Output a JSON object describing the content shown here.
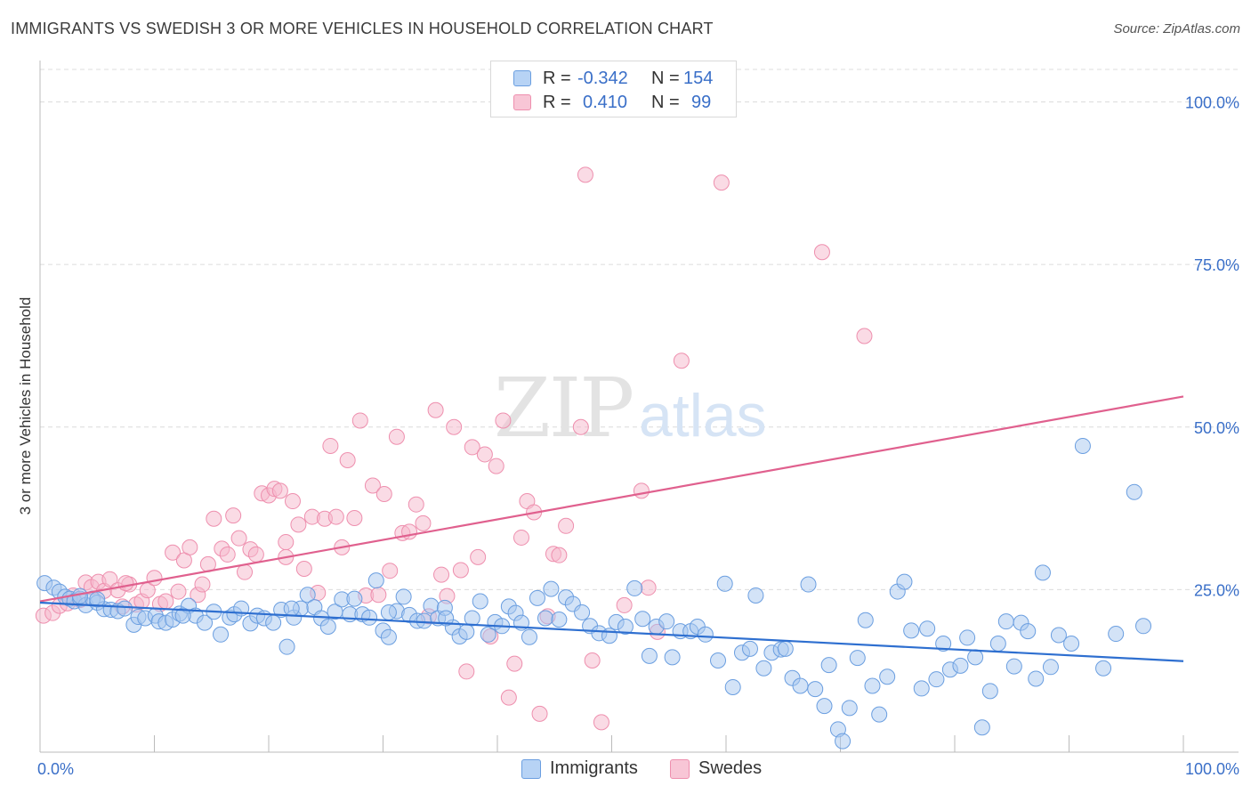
{
  "title": "IMMIGRANTS VS SWEDISH 3 OR MORE VEHICLES IN HOUSEHOLD CORRELATION CHART",
  "source": "Source: ZipAtlas.com",
  "watermark": {
    "zip": "ZIP",
    "atlas": "atlas"
  },
  "legend": {
    "rows": [
      {
        "r_label": "R =",
        "r_value": "-0.342",
        "n_label": "N =",
        "n_value": "154"
      },
      {
        "r_label": "R =",
        "r_value": "0.410",
        "n_label": "N =",
        "n_value": "99"
      }
    ]
  },
  "bottom_legend": {
    "immigrants": "Immigrants",
    "swedes": "Swedes"
  },
  "colors": {
    "immigrants_fill": "#a8c8f0",
    "immigrants_stroke": "#6a9ee0",
    "immigrants_line": "#2e6fd0",
    "swedes_fill": "#f6b8cc",
    "swedes_stroke": "#ee8fae",
    "swedes_line": "#e0608e",
    "tick_label": "#3a6fc8",
    "grid": "#dcdcdc"
  },
  "chart_data": {
    "type": "scatter",
    "title": "IMMIGRANTS VS SWEDISH 3 OR MORE VEHICLES IN HOUSEHOLD CORRELATION CHART",
    "xlabel": "",
    "ylabel": "3 or more Vehicles in Household",
    "xlim": [
      0,
      100
    ],
    "ylim": [
      0,
      105
    ],
    "x_tick_labels": [
      "0.0%",
      "100.0%"
    ],
    "y_ticks": [
      25,
      50,
      75,
      100
    ],
    "y_tick_labels": [
      "25.0%",
      "50.0%",
      "75.0%",
      "100.0%"
    ],
    "grid": "horizontal dashed",
    "legend_position": "top-center",
    "series": [
      {
        "name": "Immigrants",
        "r": -0.342,
        "n": 154,
        "trend": {
          "x": [
            0,
            100
          ],
          "y": [
            23.0,
            14.0
          ]
        },
        "points": [
          [
            0.4,
            26.0
          ],
          [
            1.2,
            25.3
          ],
          [
            1.7,
            24.7
          ],
          [
            2.2,
            23.9
          ],
          [
            2.6,
            23.6
          ],
          [
            3.0,
            23.2
          ],
          [
            3.5,
            23.6
          ],
          [
            4.0,
            22.6
          ],
          [
            4.6,
            23.6
          ],
          [
            5.0,
            23.0
          ],
          [
            5.6,
            22.0
          ],
          [
            6.2,
            21.9
          ],
          [
            6.8,
            21.7
          ],
          [
            7.4,
            22.1
          ],
          [
            8.2,
            19.6
          ],
          [
            8.6,
            20.8
          ],
          [
            9.2,
            20.6
          ],
          [
            10.1,
            21.0
          ],
          [
            10.4,
            20.1
          ],
          [
            11.0,
            19.9
          ],
          [
            11.6,
            20.4
          ],
          [
            12.2,
            21.3
          ],
          [
            13.0,
            22.5
          ],
          [
            13.6,
            21.0
          ],
          [
            14.4,
            19.9
          ],
          [
            15.2,
            21.6
          ],
          [
            15.8,
            18.1
          ],
          [
            16.6,
            20.7
          ],
          [
            17.0,
            21.2
          ],
          [
            17.6,
            22.1
          ],
          [
            18.4,
            19.8
          ],
          [
            19.0,
            21.0
          ],
          [
            19.6,
            20.6
          ],
          [
            20.4,
            19.9
          ],
          [
            21.1,
            21.9
          ],
          [
            21.6,
            16.2
          ],
          [
            22.2,
            20.7
          ],
          [
            22.8,
            22.1
          ],
          [
            23.4,
            24.2
          ],
          [
            24.0,
            22.3
          ],
          [
            24.6,
            20.6
          ],
          [
            25.2,
            19.3
          ],
          [
            25.8,
            21.6
          ],
          [
            26.4,
            23.5
          ],
          [
            27.1,
            21.2
          ],
          [
            27.5,
            23.6
          ],
          [
            28.2,
            21.2
          ],
          [
            28.8,
            20.7
          ],
          [
            29.4,
            26.4
          ],
          [
            30.0,
            18.7
          ],
          [
            30.5,
            17.7
          ],
          [
            31.2,
            21.7
          ],
          [
            31.8,
            23.9
          ],
          [
            32.3,
            21.1
          ],
          [
            33.0,
            20.2
          ],
          [
            33.6,
            20.2
          ],
          [
            34.2,
            22.5
          ],
          [
            34.8,
            20.6
          ],
          [
            35.4,
            22.2
          ],
          [
            36.1,
            19.2
          ],
          [
            36.7,
            17.8
          ],
          [
            37.3,
            18.5
          ],
          [
            37.8,
            20.6
          ],
          [
            38.5,
            23.2
          ],
          [
            39.2,
            18.1
          ],
          [
            39.8,
            20.0
          ],
          [
            40.4,
            19.4
          ],
          [
            41.0,
            22.4
          ],
          [
            41.6,
            21.4
          ],
          [
            42.1,
            19.9
          ],
          [
            42.8,
            17.7
          ],
          [
            43.5,
            23.7
          ],
          [
            44.2,
            20.6
          ],
          [
            44.7,
            25.1
          ],
          [
            45.4,
            20.4
          ],
          [
            46.0,
            23.8
          ],
          [
            46.6,
            22.8
          ],
          [
            47.4,
            21.5
          ],
          [
            48.1,
            19.4
          ],
          [
            48.9,
            18.3
          ],
          [
            49.8,
            17.9
          ],
          [
            50.4,
            20.0
          ],
          [
            51.2,
            19.3
          ],
          [
            52.0,
            25.2
          ],
          [
            52.7,
            20.5
          ],
          [
            53.3,
            14.8
          ],
          [
            53.9,
            19.3
          ],
          [
            54.8,
            20.1
          ],
          [
            55.3,
            14.6
          ],
          [
            56.0,
            18.6
          ],
          [
            56.9,
            18.6
          ],
          [
            57.5,
            19.3
          ],
          [
            58.2,
            18.1
          ],
          [
            59.3,
            14.1
          ],
          [
            59.9,
            25.9
          ],
          [
            60.6,
            10.0
          ],
          [
            61.4,
            15.3
          ],
          [
            62.1,
            15.9
          ],
          [
            62.6,
            24.1
          ],
          [
            63.3,
            12.9
          ],
          [
            64.0,
            15.3
          ],
          [
            64.8,
            15.8
          ],
          [
            65.2,
            15.9
          ],
          [
            65.8,
            11.4
          ],
          [
            66.5,
            10.2
          ],
          [
            67.2,
            25.8
          ],
          [
            67.8,
            9.7
          ],
          [
            68.6,
            7.1
          ],
          [
            69.0,
            13.4
          ],
          [
            69.8,
            3.5
          ],
          [
            70.2,
            1.7
          ],
          [
            70.8,
            6.8
          ],
          [
            71.5,
            14.5
          ],
          [
            72.2,
            20.3
          ],
          [
            72.8,
            10.2
          ],
          [
            73.4,
            5.8
          ],
          [
            74.1,
            11.6
          ],
          [
            75.0,
            24.7
          ],
          [
            75.6,
            26.2
          ],
          [
            76.2,
            18.7
          ],
          [
            77.1,
            9.8
          ],
          [
            77.6,
            19.0
          ],
          [
            78.4,
            11.2
          ],
          [
            79.0,
            16.7
          ],
          [
            79.6,
            12.7
          ],
          [
            80.5,
            13.3
          ],
          [
            81.1,
            17.6
          ],
          [
            81.8,
            14.6
          ],
          [
            82.4,
            3.8
          ],
          [
            83.1,
            9.4
          ],
          [
            83.8,
            16.7
          ],
          [
            84.5,
            20.1
          ],
          [
            85.2,
            13.2
          ],
          [
            85.8,
            19.9
          ],
          [
            86.4,
            18.6
          ],
          [
            87.1,
            11.3
          ],
          [
            87.7,
            27.6
          ],
          [
            88.4,
            13.1
          ],
          [
            89.1,
            18.0
          ],
          [
            90.2,
            16.7
          ],
          [
            91.2,
            47.1
          ],
          [
            93.0,
            12.9
          ],
          [
            94.1,
            18.2
          ],
          [
            95.7,
            40.0
          ],
          [
            96.5,
            19.4
          ],
          [
            35.5,
            20.6
          ],
          [
            30.5,
            21.5
          ],
          [
            22.0,
            22.1
          ],
          [
            12.5,
            21.0
          ],
          [
            5.0,
            23.5
          ],
          [
            3.5,
            24.0
          ]
        ]
      },
      {
        "name": "Swedes",
        "r": 0.41,
        "n": 99,
        "trend": {
          "x": [
            0,
            100
          ],
          "y": [
            23.2,
            54.7
          ]
        },
        "points": [
          [
            0.3,
            21.0
          ],
          [
            1.1,
            21.4
          ],
          [
            1.7,
            22.5
          ],
          [
            2.4,
            22.9
          ],
          [
            2.9,
            24.1
          ],
          [
            3.5,
            23.4
          ],
          [
            4.0,
            26.1
          ],
          [
            4.5,
            25.4
          ],
          [
            5.1,
            26.2
          ],
          [
            5.6,
            24.8
          ],
          [
            6.1,
            26.6
          ],
          [
            6.8,
            24.9
          ],
          [
            7.2,
            22.4
          ],
          [
            7.8,
            25.8
          ],
          [
            8.4,
            22.7
          ],
          [
            8.9,
            23.2
          ],
          [
            9.4,
            24.9
          ],
          [
            10.0,
            26.8
          ],
          [
            10.5,
            22.8
          ],
          [
            11.0,
            23.2
          ],
          [
            11.6,
            30.7
          ],
          [
            12.1,
            24.7
          ],
          [
            12.6,
            29.5
          ],
          [
            13.1,
            31.5
          ],
          [
            13.8,
            24.2
          ],
          [
            14.2,
            25.8
          ],
          [
            14.7,
            28.9
          ],
          [
            15.2,
            35.9
          ],
          [
            15.9,
            31.3
          ],
          [
            16.4,
            30.4
          ],
          [
            16.9,
            36.4
          ],
          [
            17.4,
            32.9
          ],
          [
            17.9,
            27.7
          ],
          [
            18.4,
            31.2
          ],
          [
            18.9,
            30.4
          ],
          [
            19.4,
            39.8
          ],
          [
            20.0,
            39.5
          ],
          [
            20.5,
            40.5
          ],
          [
            21.0,
            40.2
          ],
          [
            21.5,
            32.3
          ],
          [
            22.1,
            38.6
          ],
          [
            22.6,
            35.0
          ],
          [
            23.1,
            28.2
          ],
          [
            23.8,
            36.2
          ],
          [
            24.3,
            24.5
          ],
          [
            24.9,
            35.9
          ],
          [
            25.4,
            47.1
          ],
          [
            25.9,
            36.2
          ],
          [
            26.4,
            31.5
          ],
          [
            26.9,
            44.9
          ],
          [
            27.5,
            36.0
          ],
          [
            28.0,
            51.0
          ],
          [
            28.5,
            24.1
          ],
          [
            29.1,
            41.0
          ],
          [
            29.6,
            24.2
          ],
          [
            30.1,
            39.7
          ],
          [
            30.6,
            27.9
          ],
          [
            31.2,
            48.5
          ],
          [
            31.7,
            33.7
          ],
          [
            32.3,
            33.9
          ],
          [
            32.9,
            38.1
          ],
          [
            33.5,
            35.2
          ],
          [
            34.0,
            20.9
          ],
          [
            34.6,
            52.6
          ],
          [
            35.1,
            27.3
          ],
          [
            35.6,
            24.0
          ],
          [
            36.2,
            50.0
          ],
          [
            36.8,
            28.0
          ],
          [
            37.3,
            12.4
          ],
          [
            37.8,
            46.9
          ],
          [
            38.3,
            30.0
          ],
          [
            38.9,
            45.8
          ],
          [
            39.4,
            17.8
          ],
          [
            39.9,
            44.0
          ],
          [
            40.5,
            51.0
          ],
          [
            41.0,
            8.4
          ],
          [
            41.5,
            13.6
          ],
          [
            42.1,
            33.0
          ],
          [
            42.6,
            38.6
          ],
          [
            43.2,
            36.9
          ],
          [
            43.7,
            5.9
          ],
          [
            44.4,
            20.9
          ],
          [
            44.9,
            30.5
          ],
          [
            45.4,
            30.3
          ],
          [
            46.0,
            34.8
          ],
          [
            47.3,
            50.0
          ],
          [
            47.7,
            88.8
          ],
          [
            48.3,
            14.1
          ],
          [
            49.1,
            4.6
          ],
          [
            51.1,
            22.6
          ],
          [
            52.6,
            40.2
          ],
          [
            53.2,
            25.3
          ],
          [
            54.0,
            18.5
          ],
          [
            56.1,
            60.2
          ],
          [
            59.6,
            87.6
          ],
          [
            68.4,
            76.9
          ],
          [
            72.1,
            64.0
          ],
          [
            7.5,
            26.0
          ],
          [
            21.5,
            30.0
          ]
        ]
      }
    ]
  }
}
